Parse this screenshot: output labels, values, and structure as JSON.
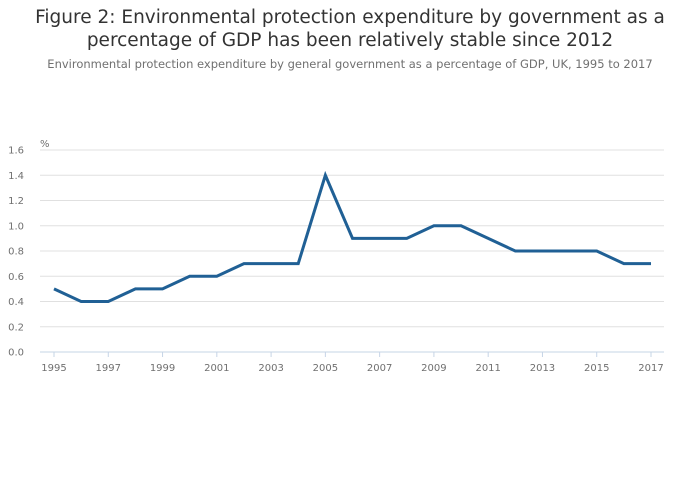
{
  "chart_data": {
    "type": "line",
    "title": "Figure 2: Environmental protection expenditure by government as a percentage of GDP has been relatively stable since 2012",
    "subtitle": "Environmental protection expenditure by general government as a percentage of GDP, UK, 1995 to 2017",
    "ylabel": "%",
    "xlabel": "",
    "ylim": [
      0,
      1.6
    ],
    "yticks": [
      "0.0",
      "0.2",
      "0.4",
      "0.6",
      "0.8",
      "1.0",
      "1.2",
      "1.4",
      "1.6"
    ],
    "xticks": [
      "1995",
      "1997",
      "1999",
      "2001",
      "2003",
      "2005",
      "2007",
      "2009",
      "2011",
      "2013",
      "2015",
      "2017"
    ],
    "grid": true,
    "x": [
      1995,
      1996,
      1997,
      1998,
      1999,
      2000,
      2001,
      2002,
      2003,
      2004,
      2005,
      2006,
      2007,
      2008,
      2009,
      2010,
      2011,
      2012,
      2013,
      2014,
      2015,
      2016,
      2017
    ],
    "series": [
      {
        "values": [
          0.5,
          0.4,
          0.4,
          0.5,
          0.5,
          0.6,
          0.6,
          0.7,
          0.7,
          0.7,
          1.4,
          0.9,
          0.9,
          0.9,
          1.0,
          1.0,
          0.9,
          0.8,
          0.8,
          0.8,
          0.8,
          0.7,
          0.7
        ],
        "color": "#206095"
      }
    ]
  }
}
